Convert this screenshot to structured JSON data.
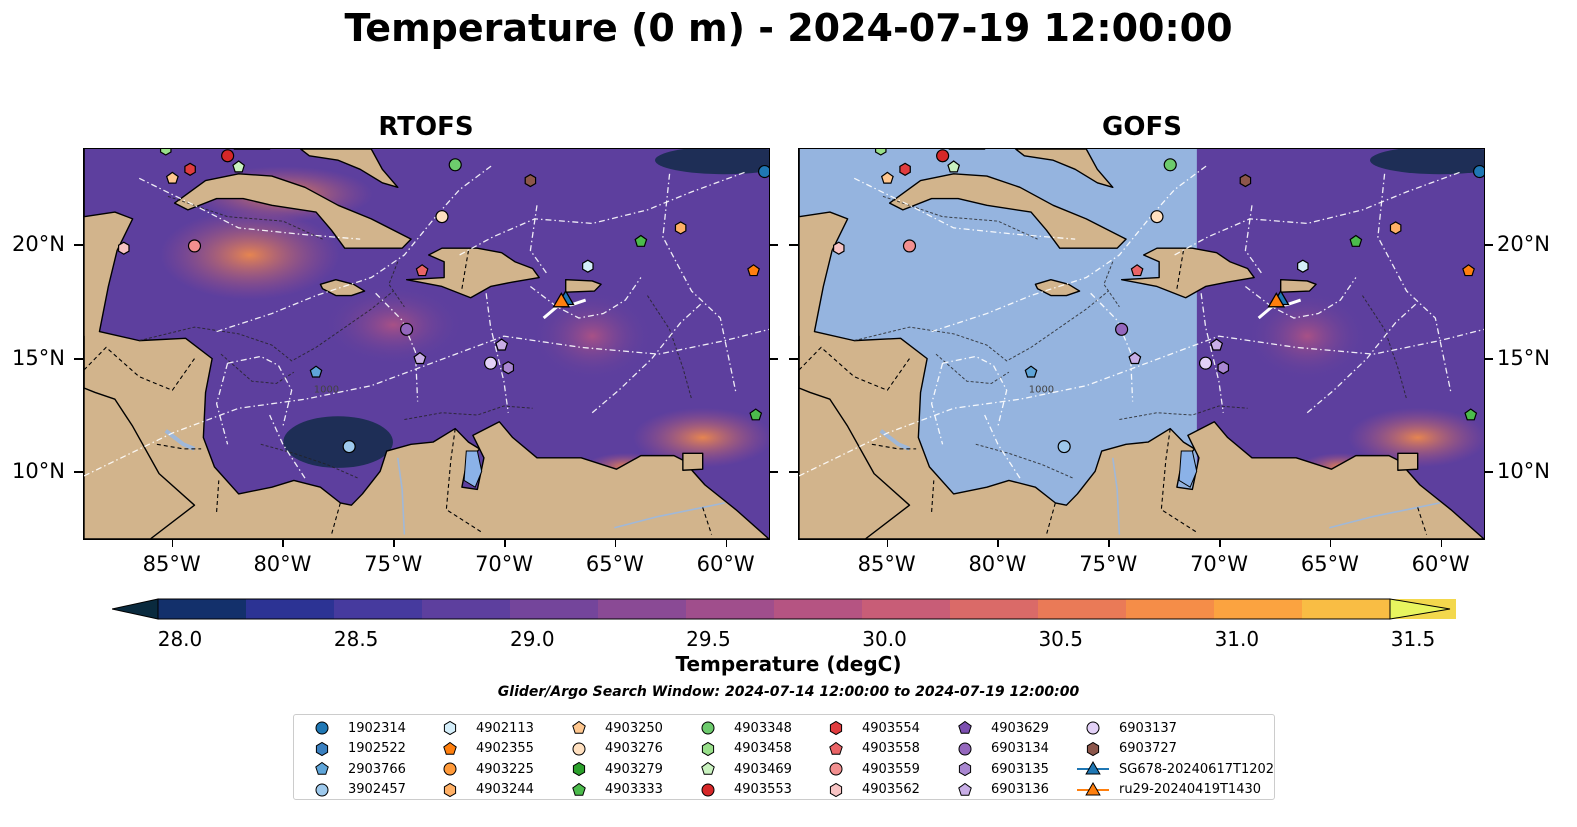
{
  "title": "Temperature (0 m) - 2024-07-19 12:00:00",
  "panels": [
    {
      "title": "RTOFS",
      "temp_field": "full"
    },
    {
      "title": "GOFS",
      "temp_field": "east-of-71W"
    }
  ],
  "map": {
    "lon_range": [
      -89,
      -58
    ],
    "lat_range": [
      7,
      24.3
    ],
    "lon_ticks": [
      "85°W",
      "80°W",
      "75°W",
      "70°W",
      "65°W",
      "60°W"
    ],
    "lat_ticks": [
      "20°N",
      "15°N",
      "10°N"
    ],
    "contour_label": "1000",
    "colors": {
      "land": "#d2b48c",
      "nodata_ocean": "#95b4df",
      "coast": "#000000"
    }
  },
  "colorbar": {
    "label": "Temperature (degC)",
    "ticks": [
      "28.0",
      "28.5",
      "29.0",
      "29.5",
      "30.0",
      "30.5",
      "31.0",
      "31.5"
    ],
    "colors": [
      "#0a2a3e",
      "#13306b",
      "#2c3394",
      "#463a9e",
      "#5d3f9e",
      "#74459b",
      "#8a4a95",
      "#a04e8c",
      "#b55482",
      "#c85d77",
      "#da6a68",
      "#ea7a57",
      "#f58d48",
      "#fba340",
      "#f9bd44",
      "#f3d84d",
      "#e8f55f"
    ]
  },
  "search_window": "Glider/Argo Search Window: 2024-07-14 12:00:00 to 2024-07-19 12:00:00",
  "legend": [
    {
      "label": "1902314",
      "marker": "circle",
      "color": "#1f77b4"
    },
    {
      "label": "1902522",
      "marker": "hexagon",
      "color": "#3a80c0"
    },
    {
      "label": "2903766",
      "marker": "pentagon",
      "color": "#5fa5d9"
    },
    {
      "label": "3902457",
      "marker": "circle",
      "color": "#9ec9ec"
    },
    {
      "label": "4902113",
      "marker": "hexagon",
      "color": "#d4eefa"
    },
    {
      "label": "4902355",
      "marker": "pentagon",
      "color": "#ff7f0e"
    },
    {
      "label": "4903225",
      "marker": "circle",
      "color": "#ff9a3a"
    },
    {
      "label": "4903244",
      "marker": "hexagon",
      "color": "#ffb066"
    },
    {
      "label": "4903250",
      "marker": "pentagon",
      "color": "#ffc78f"
    },
    {
      "label": "4903276",
      "marker": "circle",
      "color": "#ffe0c0"
    },
    {
      "label": "4903279",
      "marker": "hexagon",
      "color": "#2ca02c"
    },
    {
      "label": "4903333",
      "marker": "pentagon",
      "color": "#4cbb4c"
    },
    {
      "label": "4903348",
      "marker": "circle",
      "color": "#6dcb6d"
    },
    {
      "label": "4903458",
      "marker": "hexagon",
      "color": "#98df8a"
    },
    {
      "label": "4903469",
      "marker": "pentagon",
      "color": "#c9f2bf"
    },
    {
      "label": "4903553",
      "marker": "circle",
      "color": "#d62728"
    },
    {
      "label": "4903554",
      "marker": "hexagon",
      "color": "#e03c3e"
    },
    {
      "label": "4903558",
      "marker": "pentagon",
      "color": "#ea6466"
    },
    {
      "label": "4903559",
      "marker": "circle",
      "color": "#f28f8f"
    },
    {
      "label": "4903562",
      "marker": "hexagon",
      "color": "#f7c3c3"
    },
    {
      "label": "4903629",
      "marker": "pentagon",
      "color": "#7c4fb0"
    },
    {
      "label": "6903134",
      "marker": "circle",
      "color": "#9467bd"
    },
    {
      "label": "6903135",
      "marker": "hexagon",
      "color": "#a987d1"
    },
    {
      "label": "6903136",
      "marker": "pentagon",
      "color": "#c8aee6"
    },
    {
      "label": "6903137",
      "marker": "circle",
      "color": "#e3d1f7"
    },
    {
      "label": "6903727",
      "marker": "hexagon",
      "color": "#8c564b"
    },
    {
      "label": "SG678-20240617T1202",
      "marker": "triangle-line",
      "color": "#1f77b4"
    },
    {
      "label": "ru29-20240419T1430",
      "marker": "triangle-line",
      "color": "#ff7f0e"
    }
  ],
  "floats": [
    {
      "lon": -58.2,
      "lat": 23.3,
      "id": "1902314"
    },
    {
      "lon": -66.2,
      "lat": 19.1,
      "id": "4902113"
    },
    {
      "lon": -58.7,
      "lat": 18.9,
      "id": "4902355"
    },
    {
      "lon": -62.0,
      "lat": 20.8,
      "id": "4903244"
    },
    {
      "lon": -85.0,
      "lat": 23.0,
      "id": "4903250"
    },
    {
      "lon": -72.8,
      "lat": 21.3,
      "id": "4903276"
    },
    {
      "lon": -63.8,
      "lat": 20.2,
      "id": "4903333"
    },
    {
      "lon": -72.2,
      "lat": 23.6,
      "id": "4903348"
    },
    {
      "lon": -82.0,
      "lat": 23.5,
      "id": "4903469"
    },
    {
      "lon": -82.5,
      "lat": 24.0,
      "id": "4903553"
    },
    {
      "lon": -84.2,
      "lat": 23.4,
      "id": "4903554"
    },
    {
      "lon": -73.7,
      "lat": 18.9,
      "id": "4903558"
    },
    {
      "lon": -84.0,
      "lat": 20.0,
      "id": "4903559"
    },
    {
      "lon": -87.2,
      "lat": 19.9,
      "id": "4903562"
    },
    {
      "lon": -68.8,
      "lat": 22.9,
      "id": "6903727"
    },
    {
      "lon": -74.4,
      "lat": 16.3,
      "id": "6903134"
    },
    {
      "lon": -73.8,
      "lat": 15.0,
      "id": "6903136"
    },
    {
      "lon": -70.1,
      "lat": 15.6,
      "id": "6903136"
    },
    {
      "lon": -70.6,
      "lat": 14.8,
      "id": "6903137"
    },
    {
      "lon": -69.8,
      "lat": 14.6,
      "id": "6903135"
    },
    {
      "lon": -78.5,
      "lat": 14.4,
      "id": "2903766"
    },
    {
      "lon": -77.0,
      "lat": 11.1,
      "id": "3902457"
    },
    {
      "lon": -58.6,
      "lat": 12.5,
      "id": "4903333"
    },
    {
      "lon": -85.3,
      "lat": 24.3,
      "id": "4903458"
    }
  ],
  "gliders": [
    {
      "lon": -67.2,
      "lat": 17.6,
      "id": "SG678-20240617T1202",
      "color": "#1f77b4"
    },
    {
      "lon": -67.4,
      "lat": 17.5,
      "id": "ru29-20240419T1430",
      "color": "#ff7f0e"
    }
  ]
}
